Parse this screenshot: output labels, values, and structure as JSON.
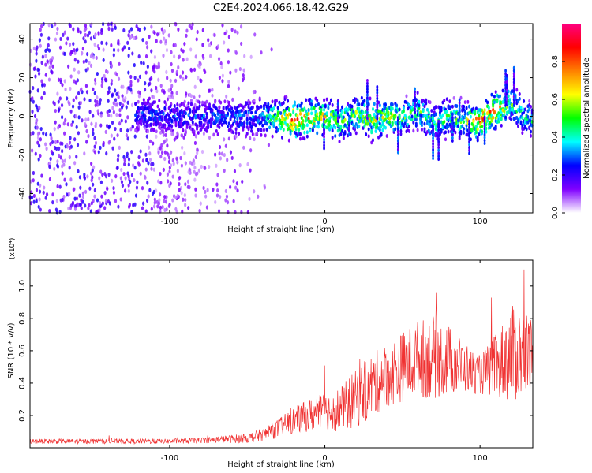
{
  "title": "C2E4.2024.066.18.42.G29",
  "chart_data": [
    {
      "type": "heatmap",
      "xlabel": "Height of straight line (km)",
      "ylabel": "Frequency (Hz)",
      "xlim": [
        -190,
        134
      ],
      "ylim": [
        -50,
        48
      ],
      "xticks": [
        -100,
        0,
        100
      ],
      "yticks": [
        -40,
        -20,
        0,
        20,
        40
      ],
      "colorbar": {
        "label": "Normalized spectral amplitude",
        "range": [
          0,
          1
        ],
        "ticks": [
          "0.0",
          "0.2",
          "0.4",
          "0.6",
          "0.8"
        ],
        "colors": [
          "#ffffff",
          "#8000ff",
          "#0000ff",
          "#00ffff",
          "#00ff00",
          "#ffff00",
          "#ff8000",
          "#ff0000",
          "#ff0080"
        ]
      },
      "ridge": {
        "x": [
          -120,
          -100,
          -80,
          -60,
          -40,
          -20,
          0,
          10,
          20,
          30,
          40,
          50,
          60,
          70,
          80,
          90,
          100,
          110,
          120,
          134
        ],
        "freq": [
          1,
          0,
          0,
          -1,
          0,
          -2,
          0,
          -3,
          2,
          -2,
          0,
          -1,
          3,
          -4,
          0,
          -3,
          -2,
          3,
          7,
          -3
        ],
        "peak_amplitude": [
          0.3,
          0.32,
          0.33,
          0.35,
          0.38,
          0.9,
          0.7,
          0.6,
          0.6,
          0.7,
          0.65,
          0.6,
          0.55,
          0.5,
          0.55,
          0.6,
          0.9,
          0.85,
          0.55,
          0.45
        ]
      }
    },
    {
      "type": "line",
      "xlabel": "Height of straight line (km)",
      "ylabel": "SNR (10 * v/v)",
      "y_multiplier": "(x10⁴)",
      "xlim": [
        -190,
        134
      ],
      "ylim": [
        0,
        1.16
      ],
      "xticks": [
        -100,
        0,
        100
      ],
      "yticks": [
        0.2,
        0.4,
        0.6,
        0.8,
        1.0
      ],
      "color": "#f03232",
      "series": [
        {
          "x": [
            -190,
            -160,
            -130,
            -100,
            -70,
            -50,
            -40,
            -30,
            -20,
            -10,
            0,
            10,
            20,
            30,
            40,
            50,
            60,
            70,
            80,
            90,
            100,
            110,
            120,
            130,
            134
          ],
          "y": [
            0.04,
            0.04,
            0.04,
            0.04,
            0.05,
            0.06,
            0.08,
            0.12,
            0.17,
            0.2,
            0.22,
            0.24,
            0.3,
            0.38,
            0.45,
            0.5,
            0.55,
            0.56,
            0.54,
            0.5,
            0.45,
            0.5,
            0.58,
            0.58,
            0.55
          ],
          "spread": [
            0.015,
            0.015,
            0.015,
            0.015,
            0.02,
            0.03,
            0.04,
            0.06,
            0.08,
            0.1,
            0.12,
            0.14,
            0.18,
            0.2,
            0.2,
            0.22,
            0.24,
            0.26,
            0.22,
            0.16,
            0.12,
            0.2,
            0.3,
            0.28,
            0.25
          ]
        }
      ]
    }
  ]
}
